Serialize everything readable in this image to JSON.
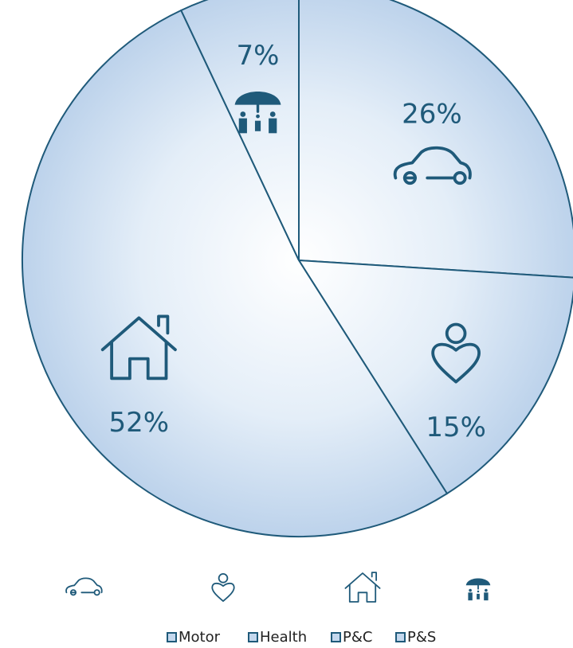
{
  "chart_data": {
    "type": "pie",
    "categories": [
      "Motor",
      "Health",
      "P&C",
      "P&S"
    ],
    "values": [
      26,
      15,
      52,
      7
    ],
    "value_labels": [
      "26%",
      "15%",
      "52%",
      "7%"
    ],
    "color": "#c4d8ee"
  }
}
